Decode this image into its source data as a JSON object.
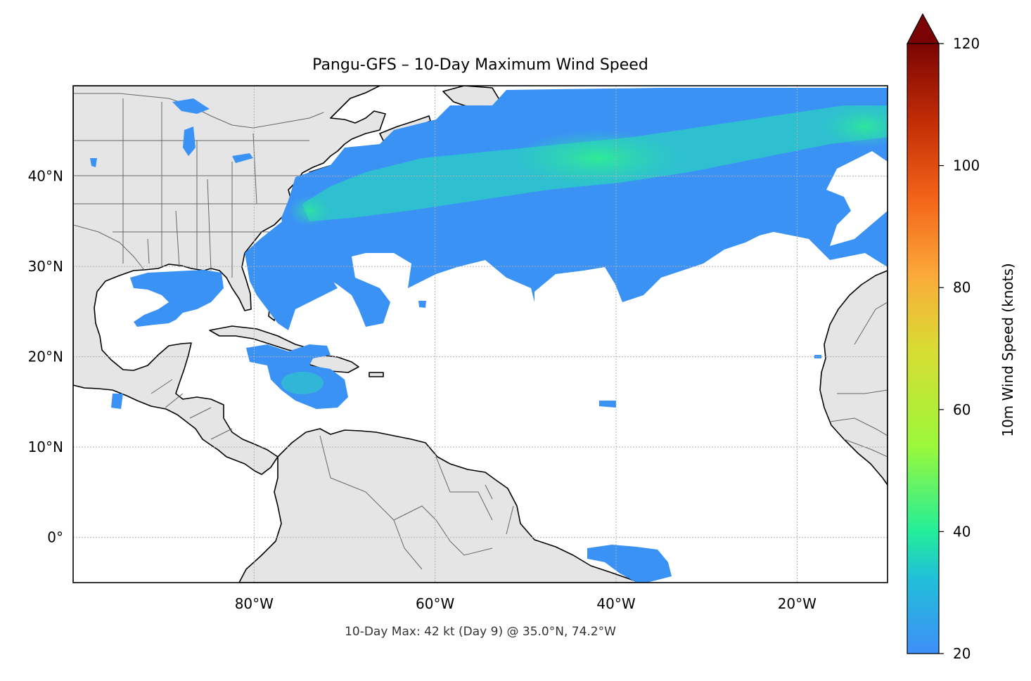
{
  "title": "Pangu-GFS – 10-Day Maximum Wind Speed",
  "subtitle": "10-Day Max: 42 kt (Day 9) @ 35.0°N, 74.2°W",
  "map": {
    "lon_range": [
      -100,
      -10
    ],
    "lat_range": [
      -5,
      50
    ],
    "lon_ticks": [
      {
        "value": -80,
        "label": "80°W"
      },
      {
        "value": -60,
        "label": "60°W"
      },
      {
        "value": -40,
        "label": "40°W"
      },
      {
        "value": -20,
        "label": "20°W"
      }
    ],
    "lat_ticks": [
      {
        "value": 40,
        "label": "40°N"
      },
      {
        "value": 30,
        "label": "30°N"
      },
      {
        "value": 20,
        "label": "20°N"
      },
      {
        "value": 10,
        "label": "10°N"
      },
      {
        "value": 0,
        "label": "0°"
      }
    ],
    "gridlines": true,
    "land_color": "#e5e5e5",
    "coast_color": "#000000",
    "border_color": "#666666"
  },
  "colorbar": {
    "label": "10m Wind Speed (knots)",
    "min": 20,
    "max": 120,
    "extend": "max",
    "ticks": [
      {
        "value": 20,
        "label": "20"
      },
      {
        "value": 40,
        "label": "40"
      },
      {
        "value": 60,
        "label": "60"
      },
      {
        "value": 80,
        "label": "80"
      },
      {
        "value": 100,
        "label": "100"
      },
      {
        "value": 120,
        "label": "120"
      }
    ],
    "colors": [
      "#3e8ff8",
      "#20c0d8",
      "#22ee9a",
      "#9bf83a",
      "#d9dc32",
      "#fbaa3a",
      "#f36218",
      "#c42e06",
      "#7a0403"
    ]
  },
  "chart_data": {
    "type": "heatmap",
    "title": "Pangu-GFS – 10-Day Maximum Wind Speed",
    "units": "knots",
    "peak": {
      "value": 42,
      "day": 9,
      "lat": 35.0,
      "lon": -74.2
    },
    "wind_regions": [
      {
        "region": "North Atlantic main band",
        "lon": [
          -73,
          -10
        ],
        "lat": [
          24,
          50
        ],
        "approx_max_kt": 40
      },
      {
        "region": "Gulf of Mexico",
        "lon": [
          -92,
          -81
        ],
        "lat": [
          23,
          30
        ],
        "approx_max_kt": 26
      },
      {
        "region": "Caribbean south of Hispaniola",
        "lon": [
          -79,
          -69
        ],
        "lat": [
          14,
          21
        ],
        "approx_max_kt": 30
      },
      {
        "region": "Equatorial Atlantic",
        "lon": [
          -42,
          -33
        ],
        "lat": [
          -5,
          -1
        ],
        "approx_max_kt": 24
      }
    ]
  }
}
